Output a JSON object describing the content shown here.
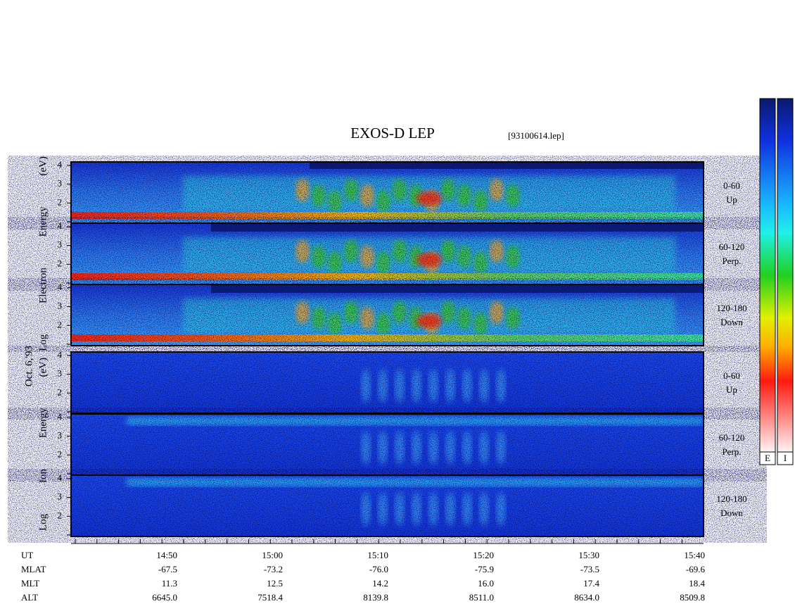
{
  "title": "EXOS-D LEP",
  "file": "[93100614.lep]",
  "date": "Oct. 6,'93",
  "groups": [
    {
      "ylabel": "Log Electron Energy (eV)",
      "panels": [
        {
          "range": "0-60",
          "direction": "Up"
        },
        {
          "range": "60-120",
          "direction": "Perp."
        },
        {
          "range": "120-180",
          "direction": "Down"
        }
      ]
    },
    {
      "ylabel": "Log Ion Energy (eV)",
      "panels": [
        {
          "range": "0-60",
          "direction": "Up"
        },
        {
          "range": "60-120",
          "direction": "Perp."
        },
        {
          "range": "120-180",
          "direction": "Down"
        }
      ]
    }
  ],
  "yticks": [
    "4",
    "3",
    "2"
  ],
  "colorbar": {
    "labels": [
      "E",
      "I"
    ]
  },
  "orbit": {
    "rows": [
      {
        "label": "UT",
        "values": [
          "14:50",
          "15:00",
          "15:10",
          "15:20",
          "15:30",
          "15:40"
        ]
      },
      {
        "label": "MLAT",
        "values": [
          "-67.5",
          "-73.2",
          "-76.0",
          "-75.9",
          "-73.5",
          "-69.6"
        ]
      },
      {
        "label": "MLT",
        "values": [
          "11.3",
          "12.5",
          "14.2",
          "16.0",
          "17.4",
          "18.4"
        ]
      },
      {
        "label": "ALT",
        "values": [
          "6645.0",
          "7518.4",
          "8139.8",
          "8511.0",
          "8634.0",
          "8509.8"
        ]
      }
    ]
  }
}
